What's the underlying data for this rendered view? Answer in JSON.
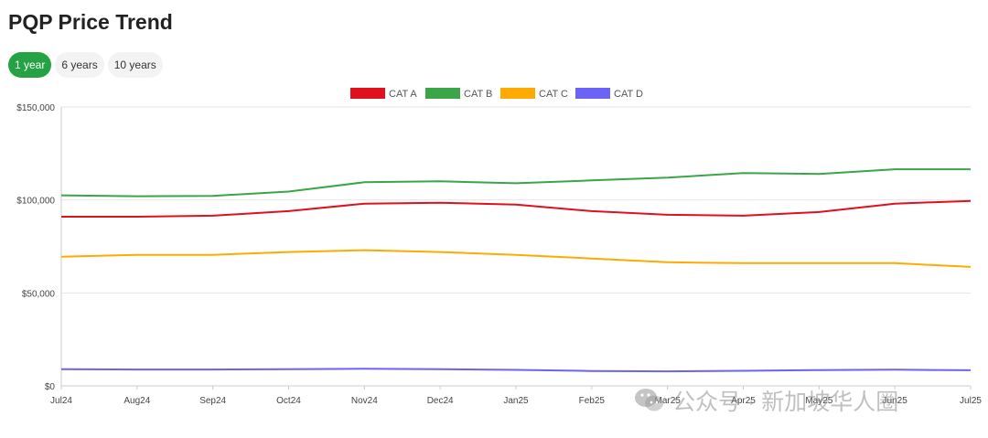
{
  "header": {
    "title": "PQP Price Trend"
  },
  "range_tabs": [
    {
      "label": "1 year",
      "active": true
    },
    {
      "label": "6 years",
      "active": false
    },
    {
      "label": "10 years",
      "active": false
    }
  ],
  "colors": {
    "accent": "#25a244",
    "grid": "#e6e6e6",
    "axis_text": "#444444"
  },
  "chart_data": {
    "type": "line",
    "title": "",
    "xlabel": "",
    "ylabel": "",
    "categories": [
      "Jul24",
      "Aug24",
      "Sep24",
      "Oct24",
      "Nov24",
      "Dec24",
      "Jan25",
      "Feb25",
      "Mar25",
      "Apr25",
      "May25",
      "Jun25",
      "Jul25"
    ],
    "y_ticks": [
      0,
      50000,
      100000,
      150000
    ],
    "y_tick_labels": [
      "$0",
      "$50,000",
      "$100,000",
      "$150,000"
    ],
    "ylim": [
      0,
      150000
    ],
    "grid": true,
    "legend_position": "top-center",
    "series": [
      {
        "name": "CAT A",
        "color": "#e0101e",
        "values": [
          91000,
          91000,
          91500,
          94000,
          98000,
          98500,
          97500,
          94000,
          92000,
          91500,
          93500,
          98000,
          99500
        ]
      },
      {
        "name": "CAT B",
        "color": "#3aa648",
        "values": [
          102500,
          102000,
          102200,
          104500,
          109500,
          110000,
          109000,
          110500,
          112000,
          114500,
          114000,
          116500,
          116500
        ]
      },
      {
        "name": "CAT C",
        "color": "#ffaa00",
        "values": [
          69500,
          70500,
          70500,
          72000,
          73000,
          72000,
          70500,
          68500,
          66500,
          66000,
          66000,
          66000,
          64000
        ]
      },
      {
        "name": "CAT D",
        "color": "#6b63f5",
        "values": [
          9000,
          8800,
          8800,
          9000,
          9200,
          9000,
          8600,
          8000,
          7800,
          8100,
          8500,
          8700,
          8400
        ]
      }
    ]
  },
  "watermark": {
    "text": "公众号 · 新加坡华人圈"
  }
}
